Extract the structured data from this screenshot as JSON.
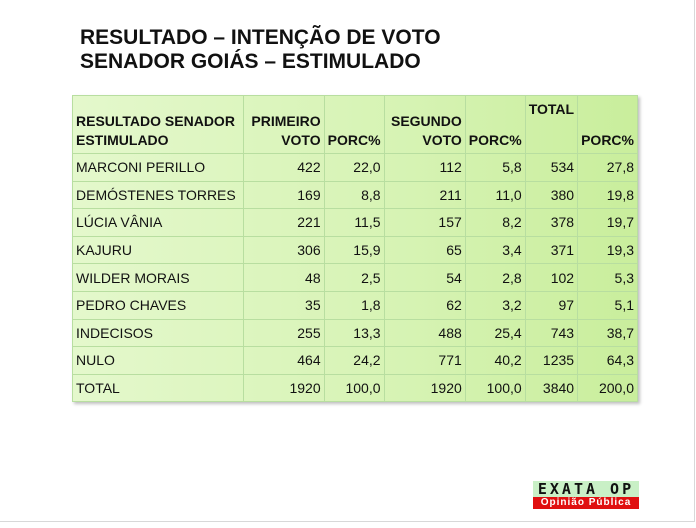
{
  "title_line1": "RESULTADO – INTENÇÃO DE VOTO",
  "title_line2": "SENADOR GOIÁS – ESTIMULADO",
  "headers": {
    "name_1": "RESULTADO SENADOR",
    "name_2": "ESTIMULADO",
    "primeiro_1": "PRIMEIRO",
    "primeiro_2": "VOTO",
    "porc": "PORC%",
    "segundo_1": "SEGUNDO",
    "segundo_2": "VOTO",
    "total": "TOTAL"
  },
  "rows": [
    [
      "MARCONI PERILLO",
      "422",
      "22,0",
      "112",
      "5,8",
      "534",
      "27,8"
    ],
    [
      "DEMÓSTENES TORRES",
      "169",
      "8,8",
      "211",
      "11,0",
      "380",
      "19,8"
    ],
    [
      "LÚCIA VÂNIA",
      "221",
      "11,5",
      "157",
      "8,2",
      "378",
      "19,7"
    ],
    [
      "KAJURU",
      "306",
      "15,9",
      "65",
      "3,4",
      "371",
      "19,3"
    ],
    [
      "WILDER MORAIS",
      "48",
      "2,5",
      "54",
      "2,8",
      "102",
      "5,3"
    ],
    [
      "PEDRO CHAVES",
      "35",
      "1,8",
      "62",
      "3,2",
      "97",
      "5,1"
    ],
    [
      "INDECISOS",
      "255",
      "13,3",
      "488",
      "25,4",
      "743",
      "38,7"
    ],
    [
      "NULO",
      "464",
      "24,2",
      "771",
      "40,2",
      "1235",
      "64,3"
    ],
    [
      "TOTAL",
      "1920",
      "100,0",
      "1920",
      "100,0",
      "3840",
      "200,0"
    ]
  ],
  "logo": {
    "line1": "EXATA OP",
    "line2": "Opinião Pública"
  }
}
